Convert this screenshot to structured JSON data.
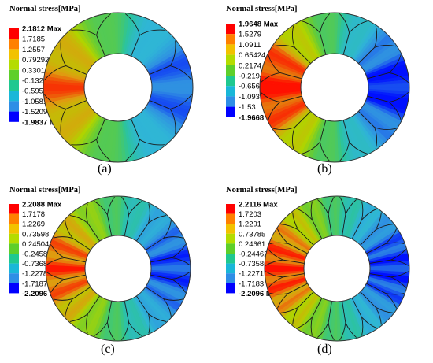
{
  "panels": [
    {
      "id": "a",
      "title": "Normal stress[MPa]",
      "caption": "(a)",
      "legend": [
        "2.1812 Max",
        "1.7185",
        "1.2557",
        "0.79292",
        "0.33016",
        "-0.13261",
        "-0.59537",
        "-1.0581",
        "-1.5209",
        "-1.9837 Min"
      ],
      "ribs": 8
    },
    {
      "id": "b",
      "title": "Normal stress[MPa]",
      "caption": "(b)",
      "legend": [
        "1.9648 Max",
        "1.5279",
        "1.0911",
        "0.65424",
        "0.2174",
        "-0.21944",
        "-0.65628",
        "-1.0931",
        "-1.53",
        "-1.9668 Min"
      ],
      "ribs": 12
    },
    {
      "id": "c",
      "title": "Normal stress[MPa]",
      "caption": "(c)",
      "legend": [
        "2.2088 Max",
        "1.7178",
        "1.2269",
        "0.73598",
        "0.24504",
        "-0.24589",
        "-0.73682",
        "-1.2278",
        "-1.7187",
        "-2.2096 Min"
      ],
      "ribs": 16
    },
    {
      "id": "d",
      "title": "Normal stress[MPa]",
      "caption": "(d)",
      "legend": [
        "2.2116 Max",
        "1.7203",
        "1.2291",
        "0.73785",
        "0.24661",
        "-0.24462",
        "-0.73586",
        "-1.2271",
        "-1.7183",
        "-2.2096 Min"
      ],
      "ribs": 20
    }
  ],
  "legend_colors": [
    "#ff0000",
    "#ff8000",
    "#f2c200",
    "#b4dc00",
    "#5ecf2a",
    "#1fc890",
    "#19b7d8",
    "#2e8ee6",
    "#0000ff"
  ]
}
